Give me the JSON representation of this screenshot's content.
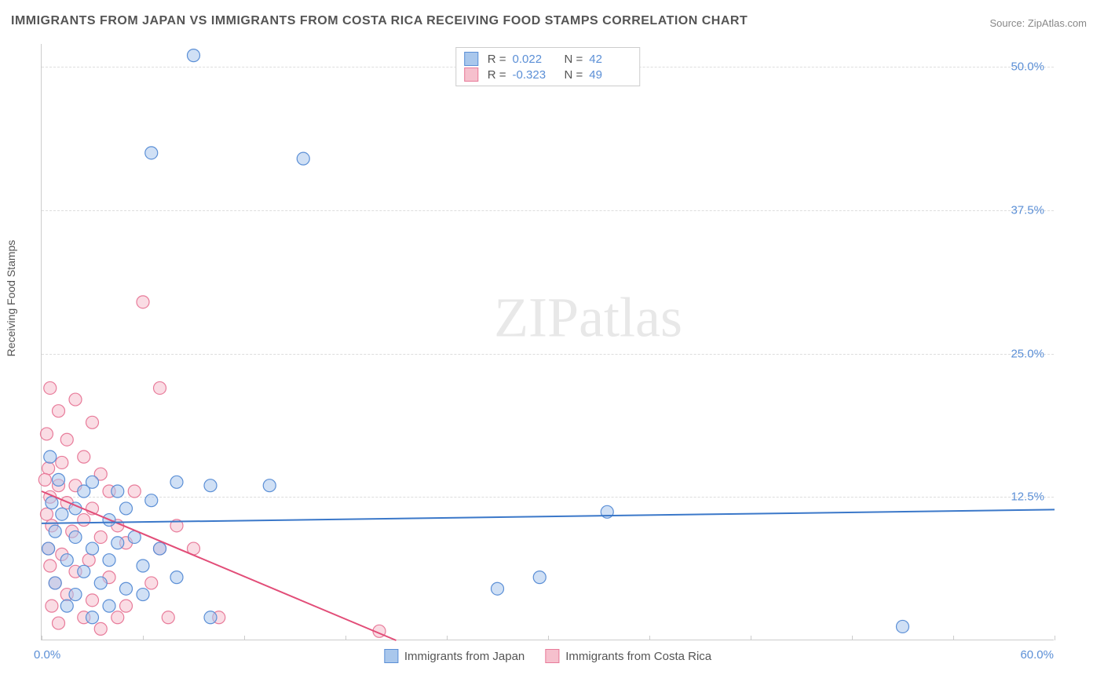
{
  "title": "IMMIGRANTS FROM JAPAN VS IMMIGRANTS FROM COSTA RICA RECEIVING FOOD STAMPS CORRELATION CHART",
  "source_label": "Source: ZipAtlas.com",
  "watermark_text": "ZIPatlas",
  "y_axis_label": "Receiving Food Stamps",
  "chart": {
    "type": "scatter",
    "xlim": [
      0,
      60
    ],
    "ylim": [
      0,
      52
    ],
    "x_tick_positions": [
      0,
      6,
      12,
      18,
      24,
      30,
      36,
      42,
      48,
      54,
      60
    ],
    "x_min_label": "0.0%",
    "x_max_label": "60.0%",
    "y_gridlines": [
      12.5,
      25.0,
      37.5,
      50.0
    ],
    "y_tick_labels": [
      "12.5%",
      "25.0%",
      "37.5%",
      "50.0%"
    ],
    "grid_color": "#dddddd",
    "axis_color": "#cccccc",
    "tick_label_color": "#5b8fd6",
    "background_color": "#ffffff",
    "marker_radius": 8,
    "marker_opacity": 0.55,
    "marker_stroke_width": 1.2,
    "line_width": 2
  },
  "series": {
    "japan": {
      "label": "Immigrants from Japan",
      "fill_color": "#a9c7ec",
      "stroke_color": "#5b8fd6",
      "line_color": "#3b78c9",
      "R": "0.022",
      "N": "42",
      "trend": {
        "x1": 0,
        "y1": 10.2,
        "x2": 60,
        "y2": 11.4
      },
      "points": [
        [
          9.0,
          51.0
        ],
        [
          6.5,
          42.5
        ],
        [
          15.5,
          42.0
        ],
        [
          8.0,
          13.8
        ],
        [
          10.0,
          13.5
        ],
        [
          13.5,
          13.5
        ],
        [
          33.5,
          11.2
        ],
        [
          6.5,
          12.2
        ],
        [
          3.0,
          13.8
        ],
        [
          2.0,
          9.0
        ],
        [
          3.0,
          8.0
        ],
        [
          4.5,
          8.5
        ],
        [
          2.5,
          6.0
        ],
        [
          3.5,
          5.0
        ],
        [
          5.0,
          4.5
        ],
        [
          6.0,
          4.0
        ],
        [
          4.0,
          3.0
        ],
        [
          2.0,
          4.0
        ],
        [
          1.5,
          7.0
        ],
        [
          0.8,
          9.5
        ],
        [
          1.2,
          11.0
        ],
        [
          4.0,
          10.5
        ],
        [
          5.5,
          9.0
        ],
        [
          7.0,
          8.0
        ],
        [
          6.0,
          6.5
        ],
        [
          8.0,
          5.5
        ],
        [
          3.0,
          2.0
        ],
        [
          2.5,
          13.0
        ],
        [
          4.5,
          13.0
        ],
        [
          0.5,
          16.0
        ],
        [
          1.0,
          14.0
        ],
        [
          0.6,
          12.0
        ],
        [
          2.0,
          11.5
        ],
        [
          5.0,
          11.5
        ],
        [
          4.0,
          7.0
        ],
        [
          1.5,
          3.0
        ],
        [
          10.0,
          2.0
        ],
        [
          27.0,
          4.5
        ],
        [
          29.5,
          5.5
        ],
        [
          51.0,
          1.2
        ],
        [
          0.4,
          8.0
        ],
        [
          0.8,
          5.0
        ]
      ]
    },
    "costa_rica": {
      "label": "Immigrants from Costa Rica",
      "fill_color": "#f6c0cd",
      "stroke_color": "#e87b9a",
      "line_color": "#e24d78",
      "R": "-0.323",
      "N": "49",
      "trend": {
        "x1": 0,
        "y1": 13.0,
        "x2": 21,
        "y2": 0
      },
      "points": [
        [
          6.0,
          29.5
        ],
        [
          7.0,
          22.0
        ],
        [
          0.5,
          22.0
        ],
        [
          1.0,
          20.0
        ],
        [
          2.0,
          21.0
        ],
        [
          3.0,
          19.0
        ],
        [
          0.3,
          18.0
        ],
        [
          1.5,
          17.5
        ],
        [
          2.5,
          16.0
        ],
        [
          0.4,
          15.0
        ],
        [
          1.2,
          15.5
        ],
        [
          3.5,
          14.5
        ],
        [
          0.2,
          14.0
        ],
        [
          1.0,
          13.5
        ],
        [
          2.0,
          13.5
        ],
        [
          4.0,
          13.0
        ],
        [
          5.5,
          13.0
        ],
        [
          0.5,
          12.5
        ],
        [
          1.5,
          12.0
        ],
        [
          3.0,
          11.5
        ],
        [
          0.3,
          11.0
        ],
        [
          2.5,
          10.5
        ],
        [
          4.5,
          10.0
        ],
        [
          0.6,
          10.0
        ],
        [
          1.8,
          9.5
        ],
        [
          3.5,
          9.0
        ],
        [
          5.0,
          8.5
        ],
        [
          7.0,
          8.0
        ],
        [
          9.0,
          8.0
        ],
        [
          0.4,
          8.0
        ],
        [
          1.2,
          7.5
        ],
        [
          2.8,
          7.0
        ],
        [
          0.5,
          6.5
        ],
        [
          2.0,
          6.0
        ],
        [
          4.0,
          5.5
        ],
        [
          6.5,
          5.0
        ],
        [
          0.8,
          5.0
        ],
        [
          1.5,
          4.0
        ],
        [
          3.0,
          3.5
        ],
        [
          5.0,
          3.0
        ],
        [
          0.6,
          3.0
        ],
        [
          2.5,
          2.0
        ],
        [
          4.5,
          2.0
        ],
        [
          7.5,
          2.0
        ],
        [
          10.5,
          2.0
        ],
        [
          1.0,
          1.5
        ],
        [
          3.5,
          1.0
        ],
        [
          8.0,
          10.0
        ],
        [
          20.0,
          0.8
        ]
      ]
    }
  },
  "stats_labels": {
    "R": "R =",
    "N": "N ="
  }
}
